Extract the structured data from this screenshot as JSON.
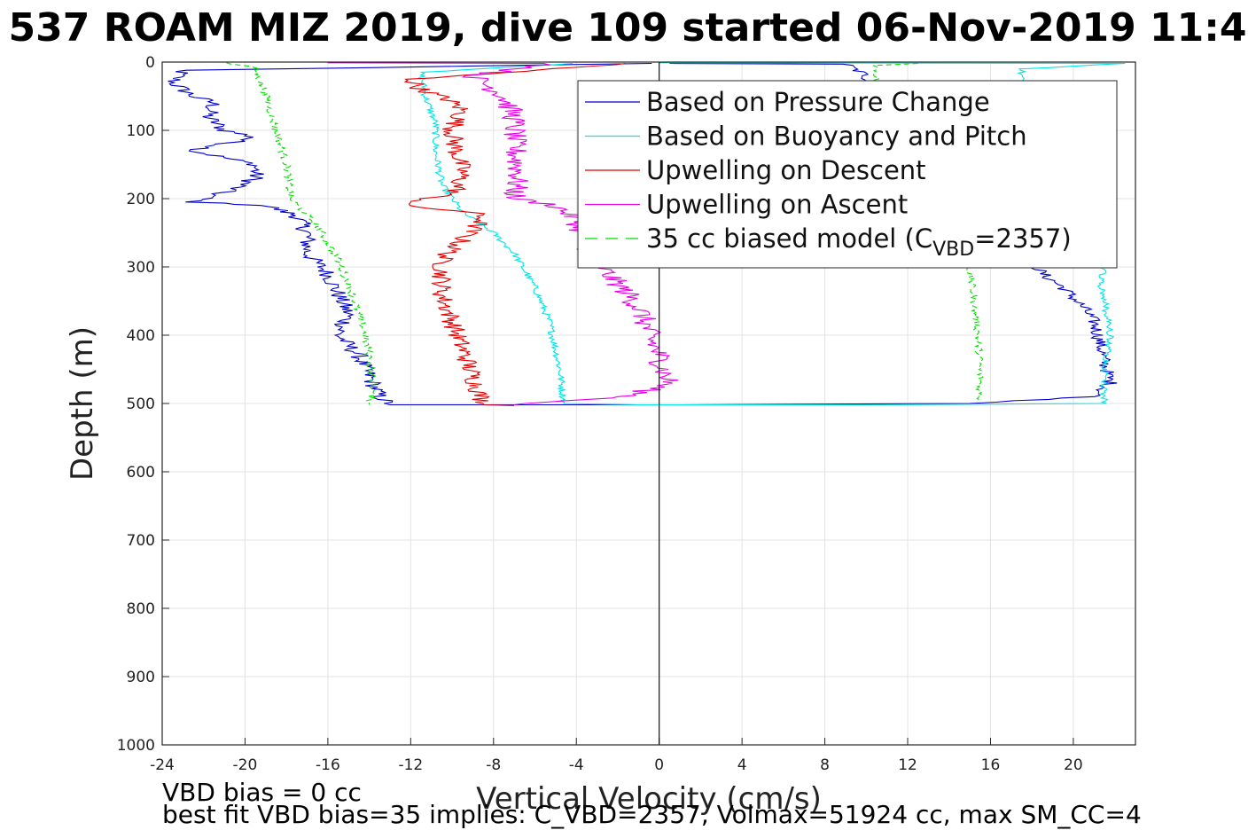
{
  "chart_data": {
    "type": "line",
    "title": "537 ROAM MIZ 2019, dive 109 started 06-Nov-2019 11:4",
    "xlabel": "Vertical Velocity (cm/s)",
    "ylabel": "Depth (m)",
    "xlim": [
      -24,
      23
    ],
    "ylim": [
      0,
      1000
    ],
    "y_reversed": true,
    "grid": true,
    "legend_position": "top-right",
    "xticks": [
      "-24",
      "-20",
      "-16",
      "-12",
      "-8",
      "-4",
      "0",
      "4",
      "8",
      "12",
      "16",
      "20"
    ],
    "yticks": [
      "0",
      "100",
      "200",
      "300",
      "400",
      "500",
      "600",
      "700",
      "800",
      "900",
      "1000"
    ],
    "legend": [
      {
        "label": "Based on Pressure Change",
        "color": "#0000c8",
        "dash": "solid"
      },
      {
        "label": "Based on Buoyancy and Pitch",
        "color": "#00e5e5",
        "dash": "solid"
      },
      {
        "label": "Upwelling on Descent",
        "color": "#e00000",
        "dash": "solid"
      },
      {
        "label": "Upwelling on Ascent",
        "color": "#e600e6",
        "dash": "solid"
      },
      {
        "label_main": "35 cc biased model (C",
        "label_sub": "VBD",
        "label_end": "=2357)",
        "color": "#00dd00",
        "dash": "dashed"
      }
    ],
    "series": [
      {
        "color": "#0000c8",
        "noise": 0.45,
        "points": [
          [
            -0.5,
            2
          ],
          [
            -23,
            12
          ],
          [
            -23.5,
            30
          ],
          [
            -22.5,
            50
          ],
          [
            -21.5,
            60
          ],
          [
            -21.8,
            80
          ],
          [
            -21,
            100
          ],
          [
            -19.5,
            110
          ],
          [
            -22.5,
            130
          ],
          [
            -19.5,
            150
          ],
          [
            -19.5,
            170
          ],
          [
            -20.5,
            185
          ],
          [
            -22.5,
            205
          ],
          [
            -19,
            210
          ],
          [
            -17.5,
            225
          ],
          [
            -17,
            250
          ],
          [
            -17,
            280
          ],
          [
            -16,
            310
          ],
          [
            -15.5,
            340
          ],
          [
            -15,
            370
          ],
          [
            -15.5,
            400
          ],
          [
            -14.5,
            430
          ],
          [
            -14,
            460
          ],
          [
            -13.5,
            490
          ],
          [
            -13,
            502
          ],
          [
            0,
            502
          ]
        ]
      },
      {
        "color": "#0000c8",
        "noise": 0.35,
        "points": [
          [
            0.5,
            2
          ],
          [
            9,
            3
          ],
          [
            10,
            20
          ],
          [
            10.8,
            70
          ],
          [
            11.8,
            80
          ],
          [
            18,
            290
          ],
          [
            18.5,
            310
          ],
          [
            19.5,
            330
          ],
          [
            20.5,
            360
          ],
          [
            21,
            380
          ],
          [
            21.2,
            400
          ],
          [
            21.5,
            440
          ],
          [
            21.8,
            470
          ],
          [
            21,
            490
          ],
          [
            15,
            500
          ],
          [
            1,
            502
          ]
        ]
      },
      {
        "color": "#00e5e5",
        "noise": 0.18,
        "points": [
          [
            -4,
            2
          ],
          [
            -11.5,
            15
          ],
          [
            -11.3,
            50
          ],
          [
            -10.8,
            90
          ],
          [
            -10.8,
            130
          ],
          [
            -10.5,
            180
          ],
          [
            -9.5,
            220
          ],
          [
            -8,
            250
          ],
          [
            -7,
            280
          ],
          [
            -6,
            330
          ],
          [
            -5.3,
            380
          ],
          [
            -4.8,
            450
          ],
          [
            -4.6,
            500
          ],
          [
            -1,
            502
          ],
          [
            10,
            502
          ],
          [
            21.5,
            500
          ],
          [
            21.5,
            460
          ],
          [
            21.8,
            400
          ],
          [
            21.5,
            350
          ],
          [
            21.3,
            320
          ],
          [
            21.5,
            300
          ],
          [
            17,
            290
          ],
          [
            17.5,
            200
          ],
          [
            17.5,
            120
          ],
          [
            17.6,
            60
          ],
          [
            17.5,
            10
          ],
          [
            22.5,
            2
          ],
          [
            0,
            1
          ]
        ]
      },
      {
        "color": "#e00000",
        "noise": 0.5,
        "points": [
          [
            -1.5,
            2
          ],
          [
            -12,
            25
          ],
          [
            -11.5,
            40
          ],
          [
            -10.2,
            55
          ],
          [
            -9.5,
            70
          ],
          [
            -10,
            100
          ],
          [
            -9.8,
            130
          ],
          [
            -9.5,
            160
          ],
          [
            -9.8,
            190
          ],
          [
            -12.5,
            210
          ],
          [
            -9,
            220
          ],
          [
            -8.5,
            230
          ],
          [
            -9.5,
            260
          ],
          [
            -10.5,
            290
          ],
          [
            -10.5,
            340
          ],
          [
            -10,
            380
          ],
          [
            -9.5,
            420
          ],
          [
            -9,
            460
          ],
          [
            -8.5,
            500
          ],
          [
            -8.5,
            502
          ],
          [
            -7,
            503
          ]
        ]
      },
      {
        "color": "#e600e6",
        "noise": 0.6,
        "points": [
          [
            -16,
            1
          ],
          [
            -5,
            2
          ],
          [
            -9,
            20
          ],
          [
            -7.5,
            50
          ],
          [
            -7,
            80
          ],
          [
            -7,
            120
          ],
          [
            -6.8,
            160
          ],
          [
            -7,
            200
          ],
          [
            -5,
            210
          ],
          [
            -4,
            230
          ],
          [
            -3.5,
            270
          ],
          [
            -2.5,
            310
          ],
          [
            -1.5,
            340
          ],
          [
            -0.8,
            370
          ],
          [
            -0.5,
            400
          ],
          [
            0,
            430
          ],
          [
            0.3,
            460
          ],
          [
            0.5,
            470
          ],
          [
            -1.5,
            490
          ],
          [
            -7,
            502
          ]
        ]
      },
      {
        "color": "#00dd00",
        "dash": "6 4",
        "noise": 0.2,
        "points": [
          [
            -21,
            1
          ],
          [
            -19.5,
            8
          ],
          [
            -19,
            50
          ],
          [
            -18.5,
            100
          ],
          [
            -18,
            150
          ],
          [
            -17.8,
            200
          ],
          [
            -16.5,
            240
          ],
          [
            -15.5,
            290
          ],
          [
            -14.8,
            340
          ],
          [
            -14.3,
            390
          ],
          [
            -14,
            430
          ],
          [
            -13.8,
            480
          ],
          [
            -14,
            500
          ],
          [
            -14,
            502
          ]
        ]
      },
      {
        "color": "#00dd00",
        "dash": "6 4",
        "noise": 0.18,
        "points": [
          [
            12.5,
            2
          ],
          [
            10.5,
            5
          ],
          [
            10.5,
            30
          ],
          [
            10.5,
            80
          ],
          [
            15,
            305
          ],
          [
            15.2,
            350
          ],
          [
            15.4,
            400
          ],
          [
            15.5,
            450
          ],
          [
            15.5,
            495
          ]
        ]
      },
      {
        "color": "#000000",
        "dash": "",
        "noise": 0,
        "points": [
          [
            0,
            0
          ],
          [
            0,
            1000
          ]
        ]
      }
    ]
  },
  "footer": {
    "line1": "VBD bias = 0 cc",
    "line2": "best fit VBD bias=35 implies: C_VBD=2357, Volmax=51924 cc, max SM_CC=4"
  }
}
